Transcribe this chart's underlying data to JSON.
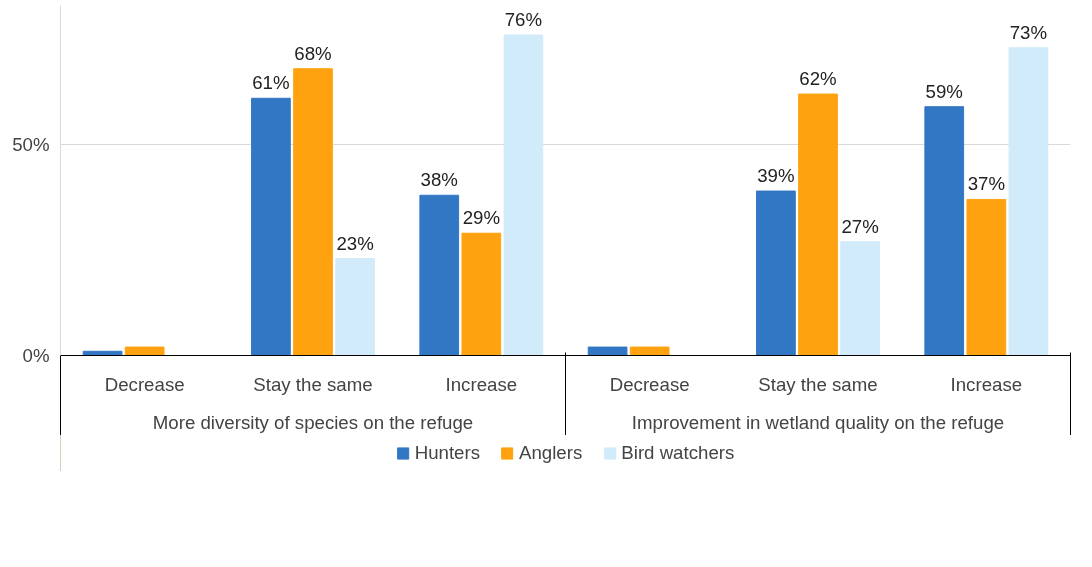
{
  "chart_data": {
    "type": "bar",
    "categories": [
      "Decrease",
      "Stay the same",
      "Increase",
      "Decrease",
      "Stay the same",
      "Increase"
    ],
    "annotations": [
      "More diversity of species on the refuge",
      "Improvement in wetland quality on the refuge"
    ],
    "series": [
      {
        "name": "Hunters",
        "color": "#3277c4",
        "values": [
          1,
          61,
          38,
          2,
          39,
          59
        ],
        "value_labels": [
          null,
          "61%",
          "38%",
          null,
          "39%",
          "59%"
        ]
      },
      {
        "name": "Anglers",
        "color": "#ffa20f",
        "values": [
          2,
          68,
          29,
          2,
          62,
          37
        ],
        "value_labels": [
          null,
          "68%",
          "29%",
          null,
          "62%",
          "37%"
        ]
      },
      {
        "name": "Bird watchers",
        "color": "#d2ebfb",
        "values": [
          0,
          23,
          76,
          0,
          27,
          73
        ],
        "value_labels": [
          null,
          "23%",
          "76%",
          null,
          "27%",
          "73%"
        ]
      }
    ],
    "ylim": [
      0,
      83
    ],
    "yticks": [
      {
        "value": 0,
        "label": "0%"
      },
      {
        "value": 50,
        "label": "50%"
      }
    ],
    "grid": "y",
    "legend": "bottom"
  }
}
